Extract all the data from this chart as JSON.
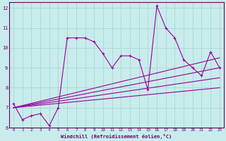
{
  "xlabel": "Windchill (Refroidissement éolien,°C)",
  "background_color": "#c8ecec",
  "grid_color": "#b0d8d8",
  "line_color": "#990099",
  "xlim": [
    -0.5,
    23.5
  ],
  "ylim": [
    6,
    12.3
  ],
  "yticks": [
    6,
    7,
    8,
    9,
    10,
    11,
    12
  ],
  "xticks": [
    0,
    1,
    2,
    3,
    4,
    5,
    6,
    7,
    8,
    9,
    10,
    11,
    12,
    13,
    14,
    15,
    16,
    17,
    18,
    19,
    20,
    21,
    22,
    23
  ],
  "series": [
    [
      0,
      7.2
    ],
    [
      1,
      6.4
    ],
    [
      2,
      6.6
    ],
    [
      3,
      6.7
    ],
    [
      4,
      6.1
    ],
    [
      5,
      7.0
    ],
    [
      6,
      10.5
    ],
    [
      7,
      10.5
    ],
    [
      8,
      10.5
    ],
    [
      9,
      10.3
    ],
    [
      10,
      9.7
    ],
    [
      11,
      9.0
    ],
    [
      12,
      9.6
    ],
    [
      13,
      9.6
    ],
    [
      14,
      9.4
    ],
    [
      15,
      7.9
    ],
    [
      16,
      12.1
    ],
    [
      17,
      11.0
    ],
    [
      18,
      10.5
    ],
    [
      19,
      9.4
    ],
    [
      20,
      9.0
    ],
    [
      21,
      8.6
    ],
    [
      22,
      9.8
    ],
    [
      23,
      9.0
    ]
  ],
  "trend_lines": [
    {
      "x": [
        0,
        23
      ],
      "y": [
        7.0,
        9.5
      ]
    },
    {
      "x": [
        0,
        23
      ],
      "y": [
        7.0,
        9.0
      ]
    },
    {
      "x": [
        0,
        23
      ],
      "y": [
        7.0,
        8.5
      ]
    },
    {
      "x": [
        0,
        23
      ],
      "y": [
        7.0,
        8.0
      ]
    }
  ]
}
